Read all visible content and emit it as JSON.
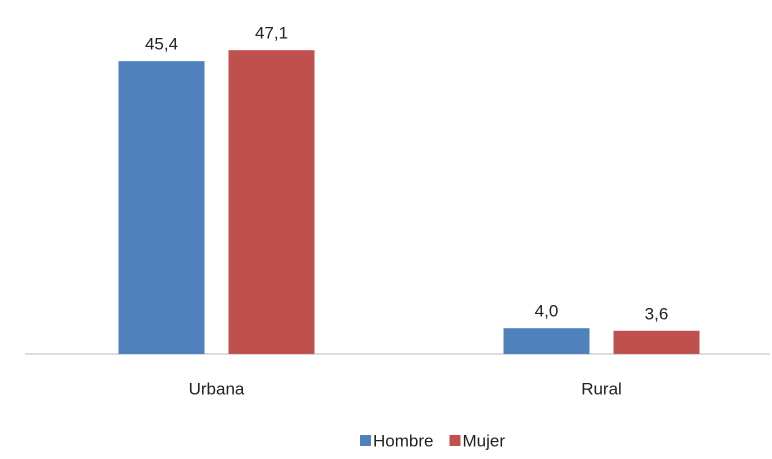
{
  "chart_data": {
    "type": "bar",
    "categories": [
      "Urbana",
      "Rural"
    ],
    "series": [
      {
        "name": "Hombre",
        "color": "#4f81bd",
        "values": [
          45.4,
          4.0
        ],
        "value_labels": [
          "45,4",
          "4,0"
        ]
      },
      {
        "name": "Mujer",
        "color": "#c0504d",
        "values": [
          47.1,
          3.6
        ],
        "value_labels": [
          "47,1",
          "3,6"
        ]
      }
    ],
    "legend": "bottom"
  }
}
